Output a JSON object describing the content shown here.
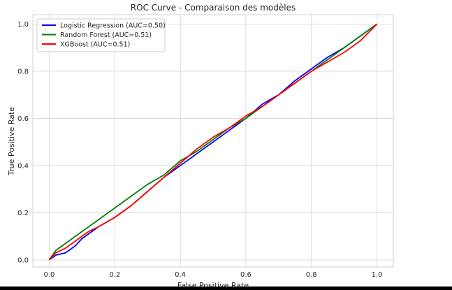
{
  "chart_data": {
    "type": "line",
    "title": "ROC Curve - Comparaison des modèles",
    "xlabel": "False Positive Rate",
    "ylabel": "True Positive Rate",
    "xlim": [
      -0.05,
      1.05
    ],
    "ylim": [
      -0.03,
      1.04
    ],
    "xticks": [
      0.0,
      0.2,
      0.4,
      0.6,
      0.8,
      1.0
    ],
    "yticks": [
      0.0,
      0.2,
      0.4,
      0.6,
      0.8,
      1.0
    ],
    "xtick_labels": [
      "0.0",
      "0.2",
      "0.4",
      "0.6",
      "0.8",
      "1.0"
    ],
    "ytick_labels": [
      "0.0",
      "0.2",
      "0.4",
      "0.6",
      "0.8",
      "1.0"
    ],
    "grid": true,
    "legend_position": "top-left",
    "series": [
      {
        "name": "Logistic Regression (AUC=0.50)",
        "color": "#0000ff",
        "x": [
          0.0,
          0.02,
          0.05,
          0.08,
          0.1,
          0.12,
          0.15,
          0.2,
          0.25,
          0.3,
          0.35,
          0.4,
          0.45,
          0.5,
          0.55,
          0.6,
          0.65,
          0.7,
          0.75,
          0.8,
          0.85,
          0.9,
          0.95,
          1.0
        ],
        "y": [
          0.0,
          0.02,
          0.03,
          0.06,
          0.09,
          0.11,
          0.14,
          0.18,
          0.23,
          0.29,
          0.35,
          0.4,
          0.45,
          0.5,
          0.55,
          0.6,
          0.66,
          0.7,
          0.76,
          0.81,
          0.86,
          0.9,
          0.95,
          1.0
        ]
      },
      {
        "name": "Random Forest (AUC=0.51)",
        "color": "#008000",
        "x": [
          0.0,
          0.02,
          0.05,
          0.08,
          0.1,
          0.12,
          0.15,
          0.18,
          0.2,
          0.25,
          0.3,
          0.35,
          0.4,
          0.45,
          0.5,
          0.55,
          0.6,
          0.65,
          0.7,
          0.75,
          0.8,
          0.85,
          0.9,
          0.95,
          1.0
        ],
        "y": [
          0.0,
          0.04,
          0.07,
          0.1,
          0.12,
          0.14,
          0.17,
          0.2,
          0.22,
          0.27,
          0.32,
          0.36,
          0.42,
          0.46,
          0.51,
          0.56,
          0.6,
          0.65,
          0.7,
          0.75,
          0.8,
          0.85,
          0.9,
          0.95,
          1.0
        ]
      },
      {
        "name": "XGBoost (AUC=0.51)",
        "color": "#ff0000",
        "x": [
          0.0,
          0.02,
          0.05,
          0.08,
          0.1,
          0.12,
          0.15,
          0.2,
          0.25,
          0.3,
          0.35,
          0.4,
          0.45,
          0.5,
          0.55,
          0.6,
          0.65,
          0.7,
          0.75,
          0.8,
          0.85,
          0.9,
          0.95,
          1.0
        ],
        "y": [
          0.0,
          0.03,
          0.05,
          0.08,
          0.1,
          0.12,
          0.14,
          0.18,
          0.23,
          0.29,
          0.35,
          0.41,
          0.47,
          0.52,
          0.56,
          0.61,
          0.65,
          0.7,
          0.75,
          0.8,
          0.84,
          0.88,
          0.93,
          1.0
        ]
      }
    ]
  }
}
